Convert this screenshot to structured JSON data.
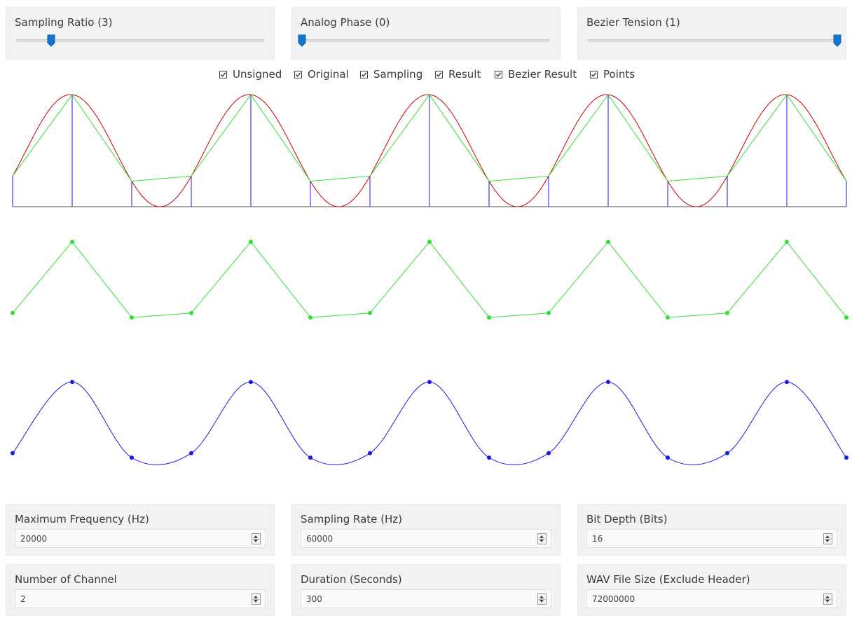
{
  "sliders": [
    {
      "label": "Sampling Ratio (3)",
      "level": 0.14
    },
    {
      "label": "Analog Phase (0)",
      "level": 0.0
    },
    {
      "label": "Bezier Tension (1)",
      "level": 1.0
    }
  ],
  "checkboxes": [
    {
      "label": "Unsigned",
      "checked": true
    },
    {
      "label": "Original",
      "checked": true
    },
    {
      "label": "Sampling",
      "checked": true
    },
    {
      "label": "Result",
      "checked": true
    },
    {
      "label": "Bezier Result",
      "checked": true
    },
    {
      "label": "Points",
      "checked": true
    }
  ],
  "fields": [
    {
      "label": "Maximum Frequency (Hz)",
      "value": "20000"
    },
    {
      "label": "Sampling Rate (Hz)",
      "value": "60000"
    },
    {
      "label": "Bit Depth (Bits)",
      "value": "16"
    },
    {
      "label": "Number of Channel",
      "value": "2"
    },
    {
      "label": "Duration (Seconds)",
      "value": "300"
    },
    {
      "label": "WAV File Size (Exclude Header)",
      "value": "72000000"
    }
  ],
  "colors": {
    "original": "#cc0000",
    "sampling": "#1a1ae6",
    "result": "#33dd33",
    "bezier": "#1a1ae6",
    "slider_thumb": "#1277d1",
    "panel_bg": "#f2f2f2"
  }
}
